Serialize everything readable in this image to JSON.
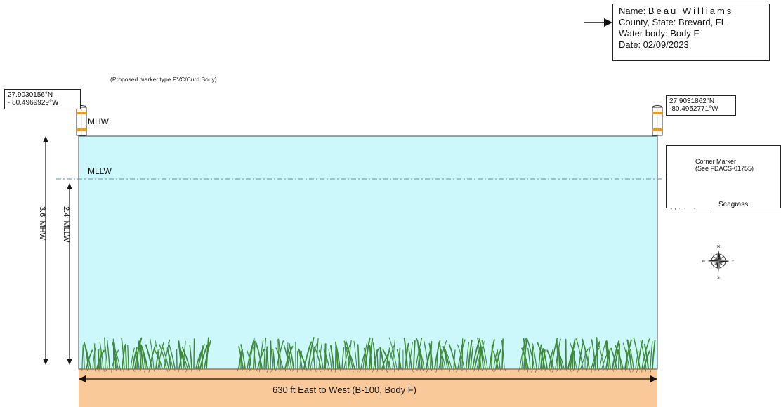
{
  "info_box": {
    "name_label": "Name:",
    "name_value": "Beau Williams",
    "county_state": "County, State: Brevard, FL",
    "water_body": "Water body: Body F",
    "date": "Date:  02/09/2023"
  },
  "proposed_marker_note": "(Proposed marker type PVC/Curd Bouy)",
  "coordinates": {
    "left": {
      "lat": "27.9030156°N",
      "lon": "- 80.4969929°W"
    },
    "right": {
      "lat": "27.9031862°N",
      "lon": "-80.4952771°W"
    }
  },
  "water_levels": {
    "mhw_label": "MHW",
    "mllw_label": "MLLW",
    "mhw_depth": "3.6' MHW",
    "mllw_depth": "2.4' MLLW"
  },
  "bottom_label": "630 ft East to West (B-100, Body F)",
  "legend": {
    "marker_title": "Corner Marker",
    "marker_note": "(See FDACS-01755)",
    "seagrass_label": "Seagrass"
  },
  "compass": {
    "n": "N",
    "s": "S",
    "e": "E",
    "w": "W"
  },
  "colors": {
    "water": "#ccf8fc",
    "sediment": "#f9c99a",
    "marker_band": "#f39c12",
    "seagrass": "#3f8a3a"
  }
}
